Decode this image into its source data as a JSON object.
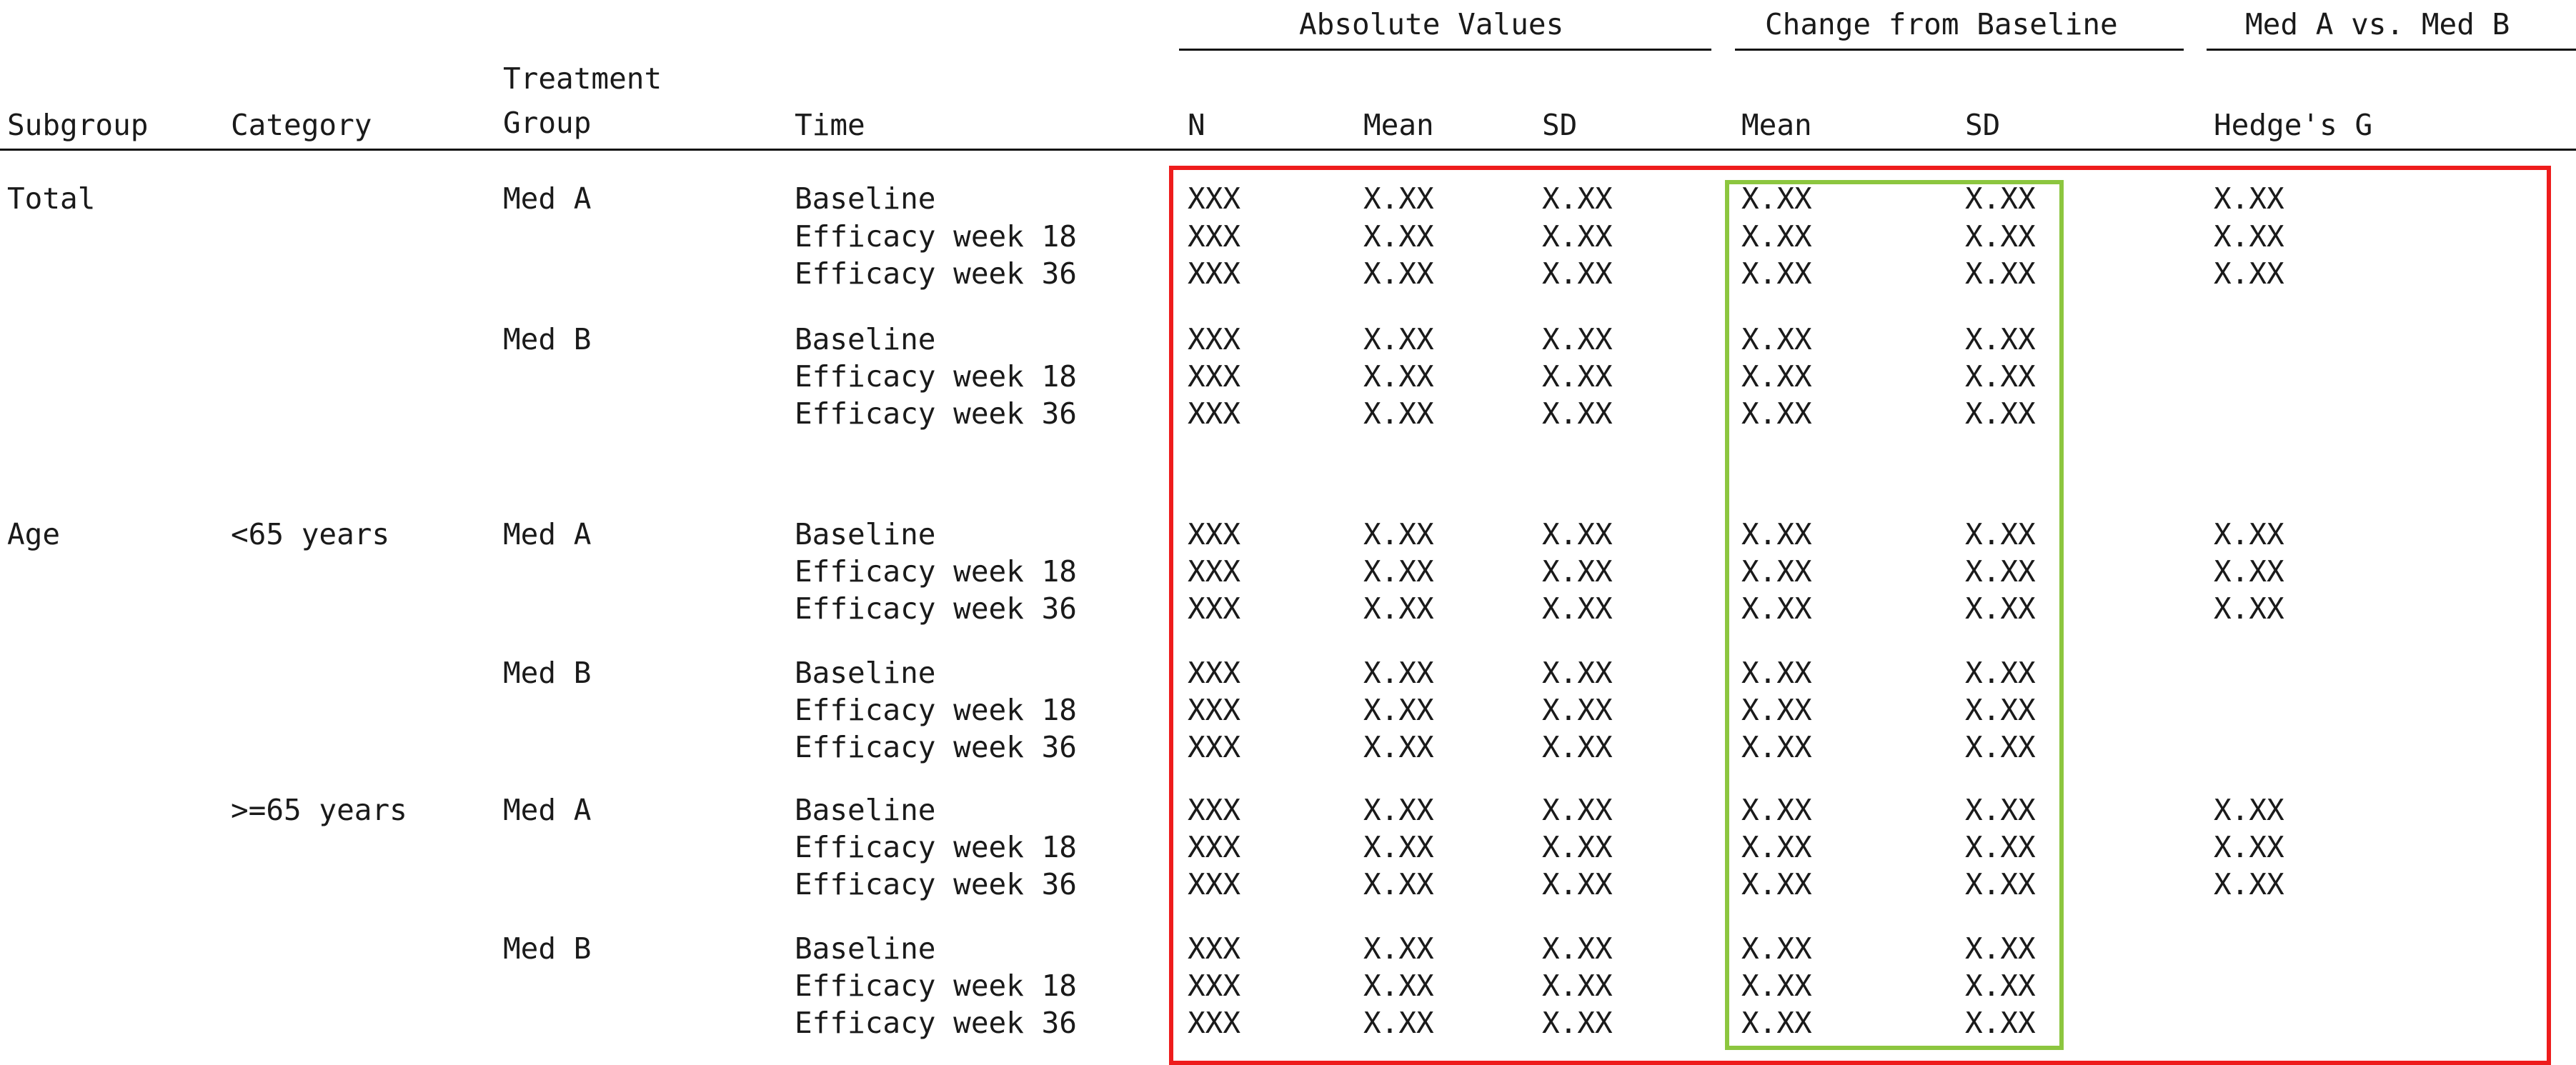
{
  "spanners": {
    "absolute": "Absolute Values",
    "change": "Change from Baseline",
    "comparison": "Med A vs. Med B"
  },
  "columns": {
    "subgroup": "Subgroup",
    "category": "Category",
    "treatment_line1": "Treatment",
    "treatment_line2": "Group",
    "time": "Time",
    "n": "N",
    "abs_mean": "Mean",
    "abs_sd": "SD",
    "chg_mean": "Mean",
    "chg_sd": "SD",
    "hedges_g": "Hedge's G"
  },
  "rows": [
    {
      "subgroup": "Total",
      "category": "",
      "group": "Med A",
      "time": "Baseline",
      "n": "XXX",
      "abs_mean": "X.XX",
      "abs_sd": "X.XX",
      "chg_mean": "X.XX",
      "chg_sd": "X.XX",
      "g": "X.XX"
    },
    {
      "subgroup": "",
      "category": "",
      "group": "",
      "time": "Efficacy week 18",
      "n": "XXX",
      "abs_mean": "X.XX",
      "abs_sd": "X.XX",
      "chg_mean": "X.XX",
      "chg_sd": "X.XX",
      "g": "X.XX"
    },
    {
      "subgroup": "",
      "category": "",
      "group": "",
      "time": "Efficacy week 36",
      "n": "XXX",
      "abs_mean": "X.XX",
      "abs_sd": "X.XX",
      "chg_mean": "X.XX",
      "chg_sd": "X.XX",
      "g": "X.XX"
    },
    {
      "subgroup": "",
      "category": "",
      "group": "Med B",
      "time": "Baseline",
      "n": "XXX",
      "abs_mean": "X.XX",
      "abs_sd": "X.XX",
      "chg_mean": "X.XX",
      "chg_sd": "X.XX",
      "g": ""
    },
    {
      "subgroup": "",
      "category": "",
      "group": "",
      "time": "Efficacy week 18",
      "n": "XXX",
      "abs_mean": "X.XX",
      "abs_sd": "X.XX",
      "chg_mean": "X.XX",
      "chg_sd": "X.XX",
      "g": ""
    },
    {
      "subgroup": "",
      "category": "",
      "group": "",
      "time": "Efficacy week 36",
      "n": "XXX",
      "abs_mean": "X.XX",
      "abs_sd": "X.XX",
      "chg_mean": "X.XX",
      "chg_sd": "X.XX",
      "g": ""
    },
    {
      "subgroup": "Age",
      "category": "<65 years",
      "group": "Med A",
      "time": "Baseline",
      "n": "XXX",
      "abs_mean": "X.XX",
      "abs_sd": "X.XX",
      "chg_mean": "X.XX",
      "chg_sd": "X.XX",
      "g": "X.XX"
    },
    {
      "subgroup": "",
      "category": "",
      "group": "",
      "time": "Efficacy week 18",
      "n": "XXX",
      "abs_mean": "X.XX",
      "abs_sd": "X.XX",
      "chg_mean": "X.XX",
      "chg_sd": "X.XX",
      "g": "X.XX"
    },
    {
      "subgroup": "",
      "category": "",
      "group": "",
      "time": "Efficacy week 36",
      "n": "XXX",
      "abs_mean": "X.XX",
      "abs_sd": "X.XX",
      "chg_mean": "X.XX",
      "chg_sd": "X.XX",
      "g": "X.XX"
    },
    {
      "subgroup": "",
      "category": "",
      "group": "Med B",
      "time": "Baseline",
      "n": "XXX",
      "abs_mean": "X.XX",
      "abs_sd": "X.XX",
      "chg_mean": "X.XX",
      "chg_sd": "X.XX",
      "g": ""
    },
    {
      "subgroup": "",
      "category": "",
      "group": "",
      "time": "Efficacy week 18",
      "n": "XXX",
      "abs_mean": "X.XX",
      "abs_sd": "X.XX",
      "chg_mean": "X.XX",
      "chg_sd": "X.XX",
      "g": ""
    },
    {
      "subgroup": "",
      "category": "",
      "group": "",
      "time": "Efficacy week 36",
      "n": "XXX",
      "abs_mean": "X.XX",
      "abs_sd": "X.XX",
      "chg_mean": "X.XX",
      "chg_sd": "X.XX",
      "g": ""
    },
    {
      "subgroup": "",
      "category": ">=65 years",
      "group": "Med A",
      "time": "Baseline",
      "n": "XXX",
      "abs_mean": "X.XX",
      "abs_sd": "X.XX",
      "chg_mean": "X.XX",
      "chg_sd": "X.XX",
      "g": "X.XX"
    },
    {
      "subgroup": "",
      "category": "",
      "group": "",
      "time": "Efficacy week 18",
      "n": "XXX",
      "abs_mean": "X.XX",
      "abs_sd": "X.XX",
      "chg_mean": "X.XX",
      "chg_sd": "X.XX",
      "g": "X.XX"
    },
    {
      "subgroup": "",
      "category": "",
      "group": "",
      "time": "Efficacy week 36",
      "n": "XXX",
      "abs_mean": "X.XX",
      "abs_sd": "X.XX",
      "chg_mean": "X.XX",
      "chg_sd": "X.XX",
      "g": "X.XX"
    },
    {
      "subgroup": "",
      "category": "",
      "group": "Med B",
      "time": "Baseline",
      "n": "XXX",
      "abs_mean": "X.XX",
      "abs_sd": "X.XX",
      "chg_mean": "X.XX",
      "chg_sd": "X.XX",
      "g": ""
    },
    {
      "subgroup": "",
      "category": "",
      "group": "",
      "time": "Efficacy week 18",
      "n": "XXX",
      "abs_mean": "X.XX",
      "abs_sd": "X.XX",
      "chg_mean": "X.XX",
      "chg_sd": "X.XX",
      "g": ""
    },
    {
      "subgroup": "",
      "category": "",
      "group": "",
      "time": "Efficacy week 36",
      "n": "XXX",
      "abs_mean": "X.XX",
      "abs_sd": "X.XX",
      "chg_mean": "X.XX",
      "chg_sd": "X.XX",
      "g": ""
    }
  ],
  "highlight_colors": {
    "values_region": "#ee1c1c",
    "change_region": "#8cc63f"
  }
}
